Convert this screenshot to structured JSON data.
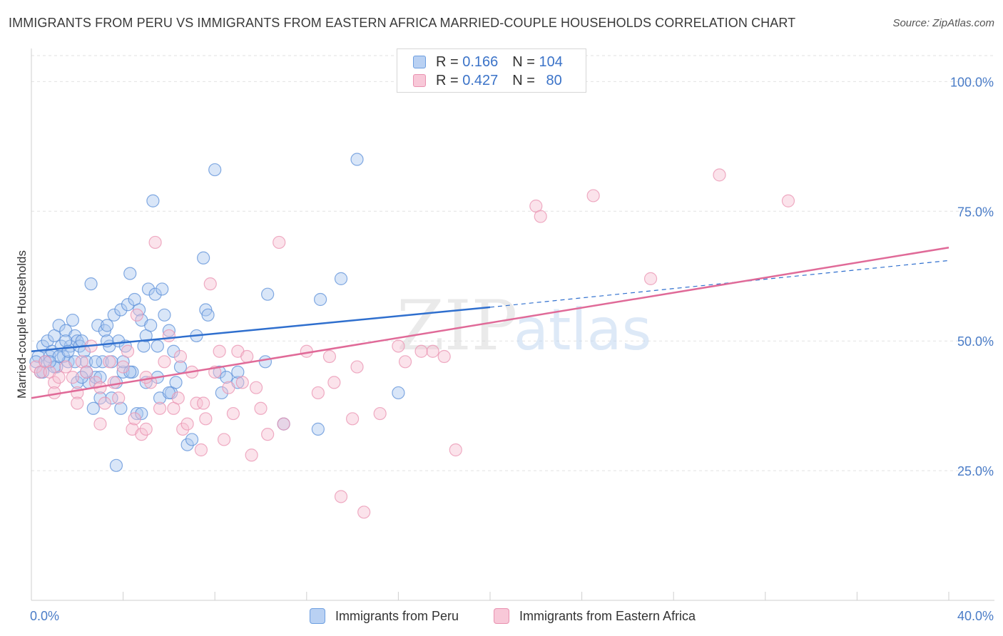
{
  "title": "IMMIGRANTS FROM PERU VS IMMIGRANTS FROM EASTERN AFRICA MARRIED-COUPLE HOUSEHOLDS CORRELATION CHART",
  "source": "Source: ZipAtlas.com",
  "watermark": {
    "zip": "ZIP",
    "atlas": "atlas"
  },
  "legend": {
    "rows": [
      {
        "r_label": "R =",
        "r_value": "0.166",
        "n_label": "N =",
        "n_value": "104",
        "color": "#6c9ee0",
        "fill": "#b9d1f3"
      },
      {
        "r_label": "R =",
        "r_value": "0.427",
        "n_label": "N =",
        "n_value": "80",
        "color": "#e991b0",
        "fill": "#f8c8d8"
      }
    ]
  },
  "chart_data": {
    "type": "scatter",
    "xlabel": "",
    "ylabel": "Married-couple Households",
    "xlim": [
      0,
      40
    ],
    "ylim": [
      0,
      105
    ],
    "x_tick_labels": [
      "0.0%",
      "40.0%"
    ],
    "y_ticks": [
      25,
      50,
      75,
      100
    ],
    "y_tick_labels": [
      "25.0%",
      "50.0%",
      "75.0%",
      "100.0%"
    ],
    "grid": true,
    "legend_position": "bottom",
    "series": [
      {
        "name": "Immigrants from Peru",
        "color": "#5b8fd8",
        "fill": "#aac8f0",
        "trend_color": "#2f6fce",
        "trend": {
          "x0": 0,
          "y0": 48,
          "x1": 20,
          "y1": 56.5,
          "dash_to_x": 40,
          "dash_to_y": 65.5
        },
        "points": [
          [
            0.3,
            47
          ],
          [
            0.4,
            44
          ],
          [
            0.5,
            49
          ],
          [
            0.6,
            46
          ],
          [
            0.7,
            50
          ],
          [
            0.8,
            47
          ],
          [
            0.9,
            48
          ],
          [
            1.0,
            51
          ],
          [
            1.1,
            45
          ],
          [
            1.2,
            53
          ],
          [
            1.3,
            49
          ],
          [
            1.4,
            47
          ],
          [
            1.5,
            52
          ],
          [
            1.6,
            46
          ],
          [
            1.7,
            49
          ],
          [
            1.8,
            54
          ],
          [
            1.9,
            51
          ],
          [
            2.0,
            50
          ],
          [
            2.1,
            49
          ],
          [
            2.2,
            50
          ],
          [
            2.3,
            48
          ],
          [
            2.4,
            46
          ],
          [
            2.5,
            42
          ],
          [
            2.6,
            61
          ],
          [
            2.7,
            37
          ],
          [
            2.8,
            43
          ],
          [
            2.9,
            53
          ],
          [
            3.0,
            39
          ],
          [
            3.1,
            46
          ],
          [
            3.2,
            52
          ],
          [
            3.3,
            53
          ],
          [
            3.4,
            49
          ],
          [
            3.5,
            46
          ],
          [
            3.6,
            55
          ],
          [
            3.7,
            26
          ],
          [
            3.8,
            50
          ],
          [
            3.9,
            56
          ],
          [
            4.0,
            44
          ],
          [
            4.1,
            49
          ],
          [
            4.2,
            57
          ],
          [
            4.3,
            63
          ],
          [
            4.4,
            44
          ],
          [
            4.5,
            58
          ],
          [
            4.6,
            36
          ],
          [
            4.7,
            56
          ],
          [
            4.8,
            54
          ],
          [
            4.9,
            49
          ],
          [
            5.0,
            51
          ],
          [
            5.1,
            60
          ],
          [
            5.2,
            53
          ],
          [
            5.3,
            77
          ],
          [
            5.4,
            59
          ],
          [
            5.5,
            43
          ],
          [
            5.6,
            39
          ],
          [
            5.7,
            60
          ],
          [
            5.8,
            55
          ],
          [
            6.0,
            52
          ],
          [
            6.1,
            40
          ],
          [
            6.2,
            48
          ],
          [
            6.3,
            42
          ],
          [
            7.5,
            66
          ],
          [
            7.6,
            56
          ],
          [
            7.7,
            55
          ],
          [
            8.0,
            83
          ],
          [
            8.2,
            44
          ],
          [
            8.3,
            40
          ],
          [
            9.0,
            42
          ],
          [
            10.2,
            46
          ],
          [
            10.3,
            59
          ],
          [
            11.0,
            34
          ],
          [
            12.5,
            33
          ],
          [
            12.6,
            58
          ],
          [
            13.5,
            62
          ],
          [
            14.2,
            85
          ],
          [
            16.0,
            40
          ],
          [
            0.2,
            46
          ],
          [
            0.5,
            44
          ],
          [
            1.0,
            45
          ],
          [
            1.5,
            50
          ],
          [
            2.0,
            42
          ],
          [
            2.8,
            46
          ],
          [
            3.0,
            43
          ],
          [
            3.5,
            39
          ],
          [
            3.7,
            42
          ],
          [
            4.3,
            44
          ],
          [
            4.8,
            36
          ],
          [
            5.0,
            42
          ],
          [
            6.0,
            40
          ],
          [
            6.8,
            30
          ],
          [
            7.0,
            31
          ],
          [
            8.5,
            43
          ],
          [
            9.0,
            44
          ],
          [
            1.2,
            47
          ],
          [
            1.6,
            48
          ],
          [
            2.4,
            44
          ],
          [
            0.8,
            46
          ],
          [
            1.9,
            46
          ],
          [
            3.3,
            50
          ],
          [
            4.0,
            46
          ],
          [
            5.5,
            49
          ],
          [
            6.5,
            45
          ],
          [
            7.2,
            51
          ],
          [
            2.2,
            43
          ],
          [
            3.9,
            37
          ]
        ]
      },
      {
        "name": "Immigrants from Eastern Africa",
        "color": "#e991b0",
        "fill": "#f6c2d3",
        "trend_color": "#e06a98",
        "trend": {
          "x0": 0,
          "y0": 39,
          "x1": 40,
          "y1": 68
        },
        "points": [
          [
            0.2,
            45
          ],
          [
            0.4,
            44
          ],
          [
            0.6,
            46
          ],
          [
            0.8,
            44
          ],
          [
            1.0,
            42
          ],
          [
            1.2,
            43
          ],
          [
            1.5,
            45
          ],
          [
            1.8,
            43
          ],
          [
            2.0,
            40
          ],
          [
            2.2,
            46
          ],
          [
            2.4,
            44
          ],
          [
            2.6,
            49
          ],
          [
            2.8,
            42
          ],
          [
            3.0,
            41
          ],
          [
            3.2,
            38
          ],
          [
            3.4,
            46
          ],
          [
            3.6,
            42
          ],
          [
            3.8,
            39
          ],
          [
            4.0,
            45
          ],
          [
            4.2,
            48
          ],
          [
            4.4,
            33
          ],
          [
            4.6,
            55
          ],
          [
            4.8,
            32
          ],
          [
            5.0,
            33
          ],
          [
            5.2,
            42
          ],
          [
            5.4,
            69
          ],
          [
            5.6,
            37
          ],
          [
            5.8,
            46
          ],
          [
            6.0,
            51
          ],
          [
            6.2,
            37
          ],
          [
            6.4,
            39
          ],
          [
            6.6,
            33
          ],
          [
            6.8,
            34
          ],
          [
            7.0,
            44
          ],
          [
            7.2,
            38
          ],
          [
            7.4,
            29
          ],
          [
            7.6,
            35
          ],
          [
            7.8,
            61
          ],
          [
            8.0,
            44
          ],
          [
            8.2,
            48
          ],
          [
            8.4,
            31
          ],
          [
            8.6,
            41
          ],
          [
            8.8,
            36
          ],
          [
            9.0,
            48
          ],
          [
            9.2,
            42
          ],
          [
            9.4,
            47
          ],
          [
            9.6,
            28
          ],
          [
            9.8,
            41
          ],
          [
            10.0,
            37
          ],
          [
            10.3,
            32
          ],
          [
            10.8,
            69
          ],
          [
            11.0,
            34
          ],
          [
            12.5,
            40
          ],
          [
            13.0,
            47
          ],
          [
            13.2,
            42
          ],
          [
            13.5,
            20
          ],
          [
            14.0,
            35
          ],
          [
            14.2,
            45
          ],
          [
            14.5,
            17
          ],
          [
            15.2,
            36
          ],
          [
            16.0,
            49
          ],
          [
            16.3,
            46
          ],
          [
            17.5,
            48
          ],
          [
            18.0,
            47
          ],
          [
            18.5,
            29
          ],
          [
            22.0,
            76
          ],
          [
            22.2,
            74
          ],
          [
            24.5,
            78
          ],
          [
            27.0,
            62
          ],
          [
            30.0,
            82
          ],
          [
            33.0,
            77
          ],
          [
            4.5,
            35
          ],
          [
            5.0,
            43
          ],
          [
            6.5,
            47
          ],
          [
            3.0,
            34
          ],
          [
            2.0,
            38
          ],
          [
            1.0,
            40
          ],
          [
            7.5,
            38
          ],
          [
            12.0,
            48
          ],
          [
            17.0,
            48
          ]
        ]
      }
    ]
  }
}
